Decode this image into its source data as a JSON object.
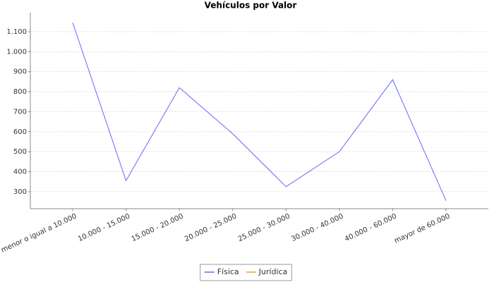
{
  "chart_data": {
    "type": "line",
    "title": "Vehículos por Valor",
    "categories": [
      "menor o igual a 10.000",
      "10.000 - 15.000",
      "15.000 - 20.000",
      "20.000 - 25.000",
      "25.000 - 30.000",
      "30.000 - 40.000",
      "40.000 - 60.000",
      "mayor de 60.000"
    ],
    "series": [
      {
        "name": "Física",
        "color": "#6666ff",
        "values": [
          1145,
          355,
          820,
          590,
          325,
          500,
          860,
          255
        ]
      },
      {
        "name": "Jurídica",
        "color": "#e8a030",
        "values": [
          null,
          null,
          null,
          null,
          null,
          null,
          null,
          null
        ]
      }
    ],
    "ylim": [
      215,
      1195
    ],
    "yticks": [
      300,
      400,
      500,
      600,
      700,
      800,
      900,
      {
        "value": 1000,
        "label": "1.000"
      },
      {
        "value": 1100,
        "label": "1.100"
      }
    ],
    "grid": true,
    "legend": "bottom"
  }
}
